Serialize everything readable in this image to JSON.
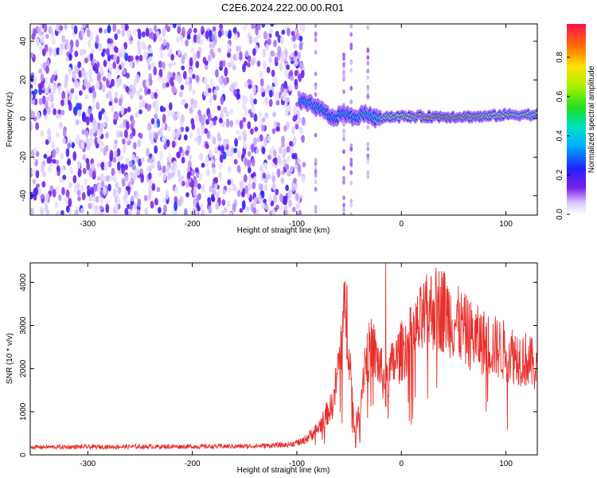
{
  "title": "C2E6.2024.222.00.00.R01",
  "colors": {
    "snr_line": "#e8302c",
    "axis": "#000000"
  },
  "chart_data": [
    {
      "type": "heatmap",
      "xlabel": "Height of straight line (km)",
      "ylabel": "Frequency (Hz)",
      "xlim": [
        -355,
        130
      ],
      "ylim": [
        -50,
        49
      ],
      "xticks": [
        -300,
        -200,
        -100,
        0,
        100
      ],
      "yticks": [
        -40,
        -20,
        0,
        20,
        40
      ],
      "colorbar": {
        "label": "Normalized spectral amplitude",
        "range": [
          0,
          0.97
        ],
        "ticks": [
          "0.0",
          "0.2",
          "0.4",
          "0.6",
          "0.8"
        ],
        "tick_values": [
          0.0,
          0.2,
          0.4,
          0.6,
          0.8
        ]
      },
      "noise_region_x": [
        -355,
        -85
      ],
      "signal_band": [
        {
          "x": -97,
          "freq": 9,
          "amp": 0.45
        },
        {
          "x": -85,
          "freq": 7,
          "amp": 0.5
        },
        {
          "x": -75,
          "freq": 4,
          "amp": 0.45
        },
        {
          "x": -65,
          "freq": 0,
          "amp": 0.45
        },
        {
          "x": -55,
          "freq": 3,
          "amp": 0.5
        },
        {
          "x": -45,
          "freq": 0,
          "amp": 0.5
        },
        {
          "x": -35,
          "freq": 3,
          "amp": 0.55
        },
        {
          "x": -25,
          "freq": 0,
          "amp": 0.55
        },
        {
          "x": -15,
          "freq": 1,
          "amp": 0.7
        },
        {
          "x": 0,
          "freq": 1,
          "amp": 0.75
        },
        {
          "x": 20,
          "freq": 1,
          "amp": 0.85
        },
        {
          "x": 40,
          "freq": 1,
          "amp": 0.9
        },
        {
          "x": 60,
          "freq": 1,
          "amp": 0.85
        },
        {
          "x": 80,
          "freq": 1,
          "amp": 0.8
        },
        {
          "x": 100,
          "freq": 2,
          "amp": 0.75
        },
        {
          "x": 130,
          "freq": 2,
          "amp": 0.7
        }
      ]
    },
    {
      "type": "line",
      "series_color": "#e8302c",
      "xlabel": "Height of straight line (km)",
      "ylabel": "SNR (10 * v/v)",
      "xlim": [
        -355,
        130
      ],
      "ylim": [
        0,
        4450
      ],
      "xticks": [
        -300,
        -200,
        -100,
        0,
        100
      ],
      "yticks": [
        0,
        1000,
        2000,
        3000,
        4000
      ],
      "envelope": {
        "x": [
          -355,
          -150,
          -110,
          -95,
          -80,
          -65,
          -58,
          -53,
          -50,
          -45,
          -40,
          -35,
          -28,
          -20,
          -15,
          -10,
          -5,
          0,
          10,
          20,
          30,
          40,
          50,
          60,
          70,
          80,
          90,
          100,
          110,
          120,
          130
        ],
        "y": [
          180,
          200,
          230,
          300,
          600,
          1200,
          2500,
          3500,
          2500,
          600,
          1000,
          2200,
          2500,
          2000,
          1600,
          2000,
          2200,
          2400,
          2700,
          3100,
          3400,
          3400,
          3100,
          2900,
          2700,
          2600,
          2500,
          2400,
          2300,
          2200,
          2000
        ]
      },
      "annotations": [
        {
          "x": -52,
          "y": 3900
        },
        {
          "x": -15,
          "y": 4450
        },
        {
          "x": 40,
          "y": 4200
        }
      ]
    }
  ]
}
